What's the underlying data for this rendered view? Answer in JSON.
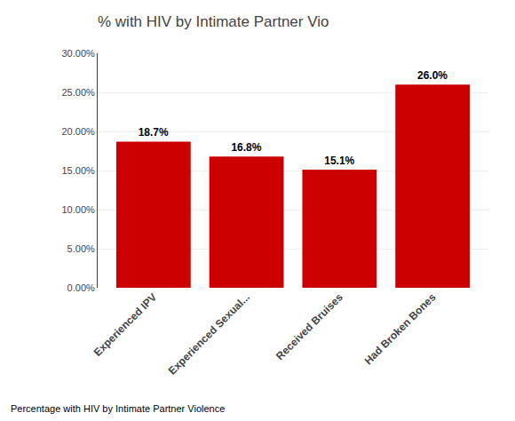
{
  "chart_data": {
    "type": "bar",
    "title": "% with HIV by Intimate Partner Vio",
    "caption": "Percentage with HIV by Intimate Partner Violence",
    "categories": [
      "Experienced IPV",
      "Experienced Sexual...",
      "Received Bruises",
      "Had Broken Bones"
    ],
    "values": [
      18.7,
      16.8,
      15.1,
      26.0
    ],
    "value_labels": [
      "18.7%",
      "16.8%",
      "15.1%",
      "26.0%"
    ],
    "data_labels": true,
    "color": "#CC0000",
    "ylim": [
      0,
      30
    ],
    "yticks": [
      {
        "value": 0,
        "label": "0.00%"
      },
      {
        "value": 5,
        "label": "5.00%"
      },
      {
        "value": 10,
        "label": "10.00%"
      },
      {
        "value": 15,
        "label": "15.00%"
      },
      {
        "value": 20,
        "label": "20.00%"
      },
      {
        "value": 25,
        "label": "25.00%"
      },
      {
        "value": 30,
        "label": "30.00%"
      }
    ],
    "grid": true
  }
}
